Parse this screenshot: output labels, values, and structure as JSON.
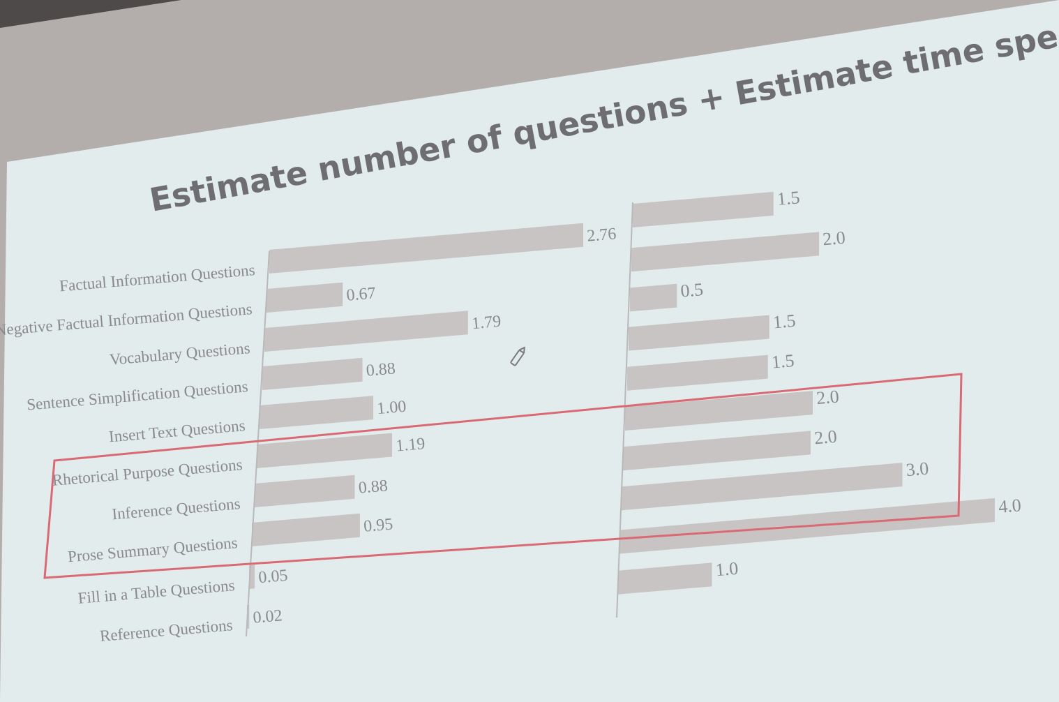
{
  "slide": {
    "title": "Estimate number of questions + Estimate time spent",
    "colors": {
      "screen": "#e2ecec",
      "bar": "#c8c4c4",
      "text": "#8a8a8c",
      "title": "#6e6e72",
      "highlight_box": "#d96a74",
      "wall": "#b3aeac"
    }
  },
  "chart_data": [
    {
      "type": "bar",
      "orientation": "horizontal",
      "categories": [
        "Factual Information Questions",
        "Negative Factual Information Questions",
        "Vocabulary Questions",
        "Sentence Simplification Questions",
        "Insert Text Questions",
        "Rhetorical Purpose Questions",
        "Inference Questions",
        "Prose Summary Questions",
        "Fill in a Table Questions",
        "Reference Questions"
      ],
      "values": [
        2.76,
        0.67,
        1.79,
        0.88,
        1.0,
        1.19,
        0.88,
        0.95,
        0.05,
        0.02
      ],
      "value_labels": [
        "2.76",
        "0.67",
        "1.79",
        "0.88",
        "1.00",
        "1.19",
        "0.88",
        "0.95",
        "0.05",
        "0.02"
      ],
      "xlim": [
        0,
        2.76
      ],
      "title": "",
      "xlabel": "",
      "ylabel": ""
    },
    {
      "type": "bar",
      "orientation": "horizontal",
      "values": [
        1.5,
        2.0,
        0.5,
        1.5,
        1.5,
        2.0,
        2.0,
        3.0,
        4.0,
        1.0
      ],
      "value_labels": [
        "1.5",
        "2.0",
        "0.5",
        "1.5",
        "1.5",
        "2.0",
        "2.0",
        "3.0",
        "4.0",
        "1.0"
      ],
      "xlim": [
        0,
        4.0
      ],
      "title": "",
      "xlabel": "",
      "ylabel": ""
    }
  ],
  "annotations": {
    "highlight_box": "red outline around Rhetorical Purpose, Inference and Prose Summary rows",
    "pen_cursor_icon": "pencil-icon"
  }
}
